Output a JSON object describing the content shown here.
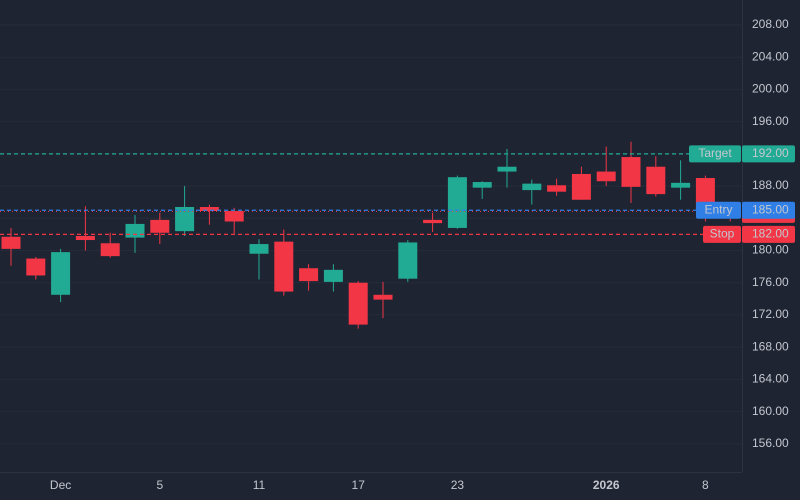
{
  "chart_data": {
    "type": "candlestick",
    "categories": [
      null,
      null,
      "Dec",
      null,
      null,
      null,
      "5",
      null,
      null,
      null,
      "11",
      null,
      null,
      null,
      "17",
      null,
      null,
      null,
      "23",
      null,
      null,
      null,
      null,
      null,
      "2026",
      null,
      null,
      null,
      "8",
      null
    ],
    "series": [
      {
        "up_color": "#22ab94",
        "down_color": "#f23645",
        "open": [
          181.7,
          179.0,
          174.5,
          181.8,
          180.9,
          181.6,
          183.8,
          182.4,
          185.4,
          184.9,
          179.6,
          181.1,
          177.8,
          176.1,
          176.0,
          174.5,
          176.5,
          183.8,
          182.8,
          187.8,
          189.8,
          187.5,
          188.1,
          189.5,
          189.8,
          191.6,
          190.4,
          187.8,
          189.0,
          185.1
        ],
        "high": [
          182.8,
          179.2,
          180.2,
          185.5,
          182.2,
          184.4,
          184.7,
          188.0,
          185.7,
          185.3,
          181.4,
          182.6,
          178.3,
          178.3,
          176.2,
          176.1,
          181.3,
          184.7,
          189.3,
          188.6,
          192.6,
          188.8,
          188.9,
          190.4,
          192.9,
          193.5,
          191.7,
          191.2,
          189.3,
          185.7
        ],
        "low": [
          178.1,
          176.4,
          173.6,
          180.0,
          179.1,
          179.7,
          180.8,
          181.8,
          183.2,
          182.1,
          176.4,
          174.4,
          175.0,
          174.9,
          170.3,
          171.6,
          176.1,
          182.3,
          182.7,
          186.4,
          187.8,
          185.7,
          186.8,
          186.3,
          188.0,
          185.9,
          186.7,
          186.3,
          183.6,
          183.6
        ],
        "close": [
          180.2,
          176.9,
          179.8,
          181.3,
          179.3,
          183.3,
          182.2,
          185.4,
          184.9,
          183.6,
          180.8,
          174.9,
          176.2,
          177.6,
          170.8,
          173.9,
          181.0,
          183.4,
          189.1,
          188.5,
          190.4,
          188.3,
          187.3,
          186.3,
          188.6,
          187.9,
          187.0,
          188.4,
          184.9,
          184.86
        ]
      }
    ],
    "ylim": [
      152.5,
      211.1
    ],
    "yticks": [
      {
        "value": 156,
        "label": "156.00"
      },
      {
        "value": 160,
        "label": "160.00"
      },
      {
        "value": 164,
        "label": "164.00"
      },
      {
        "value": 168,
        "label": "168.00"
      },
      {
        "value": 172,
        "label": "172.00"
      },
      {
        "value": 176,
        "label": "176.00"
      },
      {
        "value": 180,
        "label": "180.00"
      },
      {
        "value": 184,
        "label": "184.00"
      },
      {
        "value": 188,
        "label": "188.00"
      },
      {
        "value": 192,
        "label": "192.00"
      },
      {
        "value": 196,
        "label": "196.00"
      },
      {
        "value": 200,
        "label": "200.00"
      },
      {
        "value": 204,
        "label": "204.00"
      },
      {
        "value": 208,
        "label": "208.00"
      }
    ],
    "grid": true,
    "levels": [
      {
        "label": "Target",
        "value": 192,
        "value_label": "192.00",
        "color": "#22ab94"
      },
      {
        "label": "Entry",
        "value": 185,
        "value_label": "185.00",
        "color": "#2f7fe6"
      },
      {
        "label": "Stop",
        "value": 182,
        "value_label": "182.00",
        "color": "#f23645"
      }
    ],
    "last_price": {
      "value": 184.86,
      "color": "#f23645"
    }
  }
}
